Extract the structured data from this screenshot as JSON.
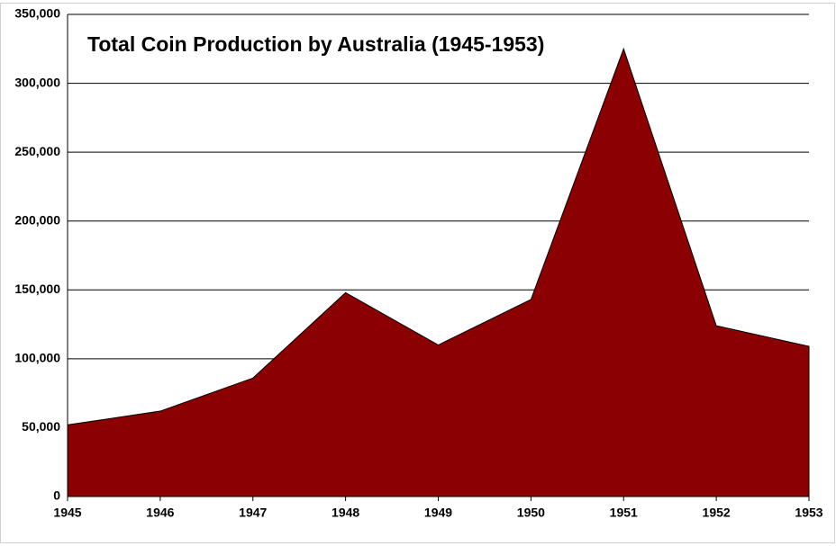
{
  "chart_data": {
    "type": "area",
    "title": "Total Coin Production by Australia (1945-1953)",
    "x": [
      1945,
      1946,
      1947,
      1948,
      1949,
      1950,
      1951,
      1952,
      1953
    ],
    "values": [
      52000,
      62000,
      86000,
      148000,
      110000,
      143000,
      325000,
      124000,
      109000
    ],
    "color": "#8b0000",
    "xlim": [
      1945,
      1953
    ],
    "xticks": [
      1945,
      1946,
      1947,
      1948,
      1949,
      1950,
      1951,
      1952,
      1953
    ],
    "ylim": [
      0,
      350000
    ],
    "yticks": [
      0,
      {
        "value": 50000,
        "label": "50,000"
      },
      {
        "value": 100000,
        "label": "100,000"
      },
      {
        "value": 150000,
        "label": "150,000"
      },
      {
        "value": 200000,
        "label": "200,000"
      },
      {
        "value": 250000,
        "label": "250,000"
      },
      {
        "value": 300000,
        "label": "300,000"
      },
      {
        "value": 350000,
        "label": "350,000"
      }
    ],
    "grid": true
  }
}
